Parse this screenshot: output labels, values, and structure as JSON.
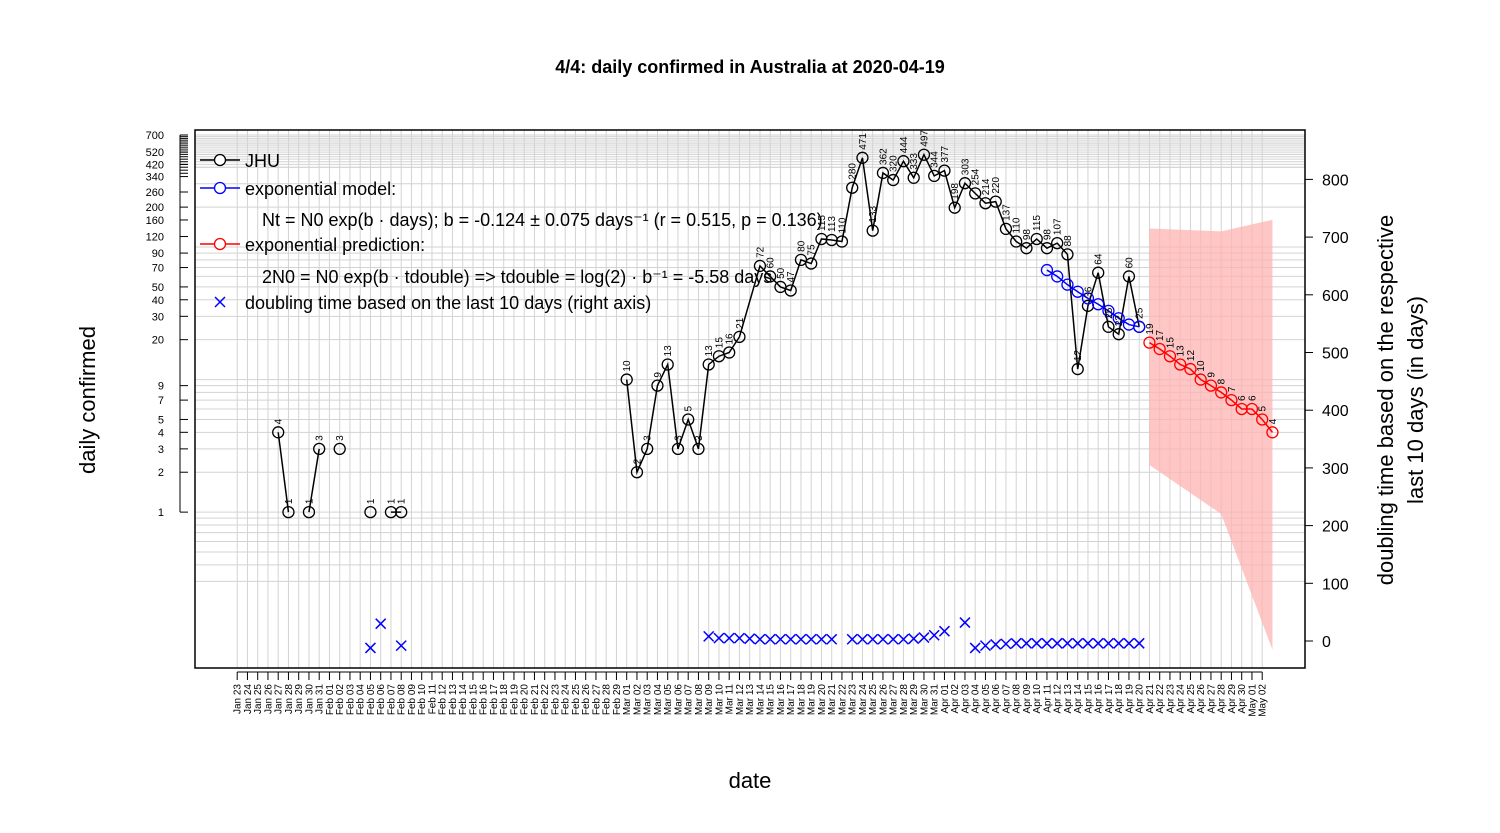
{
  "chart_data": {
    "type": "line",
    "title": "4/4: daily confirmed in Australia at 2020-04-19",
    "xlabel": "date",
    "ylabel": "daily confirmed",
    "ylabel_right": [
      "doubling time based on the respective",
      "last 10 days (in days)"
    ],
    "y_scale": "log",
    "ylim": [
      0.3,
      700
    ],
    "y_ticks": [
      1,
      2,
      3,
      4,
      5,
      7,
      9,
      20,
      30,
      40,
      50,
      70,
      90,
      120,
      160,
      200,
      260,
      340,
      420,
      520,
      700
    ],
    "y2lim": [
      -50,
      880
    ],
    "y2_ticks": [
      0,
      100,
      200,
      300,
      400,
      500,
      600,
      700,
      800
    ],
    "grid": true,
    "x_dates": [
      "Jan 23",
      "Jan 24",
      "Jan 25",
      "Jan 26",
      "Jan 27",
      "Jan 28",
      "Jan 29",
      "Jan 30",
      "Jan 31",
      "Feb 01",
      "Feb 02",
      "Feb 03",
      "Feb 04",
      "Feb 05",
      "Feb 06",
      "Feb 07",
      "Feb 08",
      "Feb 09",
      "Feb 10",
      "Feb 11",
      "Feb 12",
      "Feb 13",
      "Feb 14",
      "Feb 15",
      "Feb 16",
      "Feb 17",
      "Feb 18",
      "Feb 19",
      "Feb 20",
      "Feb 21",
      "Feb 22",
      "Feb 23",
      "Feb 24",
      "Feb 25",
      "Feb 26",
      "Feb 27",
      "Feb 28",
      "Feb 29",
      "Mar 01",
      "Mar 02",
      "Mar 03",
      "Mar 04",
      "Mar 05",
      "Mar 06",
      "Mar 07",
      "Mar 08",
      "Mar 09",
      "Mar 10",
      "Mar 11",
      "Mar 12",
      "Mar 13",
      "Mar 14",
      "Mar 15",
      "Mar 16",
      "Mar 17",
      "Mar 18",
      "Mar 19",
      "Mar 20",
      "Mar 21",
      "Mar 22",
      "Mar 23",
      "Mar 24",
      "Mar 25",
      "Mar 26",
      "Mar 27",
      "Mar 28",
      "Mar 29",
      "Mar 30",
      "Mar 31",
      "Apr 01",
      "Apr 02",
      "Apr 03",
      "Apr 04",
      "Apr 05",
      "Apr 06",
      "Apr 07",
      "Apr 08",
      "Apr 09",
      "Apr 10",
      "Apr 11",
      "Apr 12",
      "Apr 13",
      "Apr 14",
      "Apr 15",
      "Apr 16",
      "Apr 17",
      "Apr 18",
      "Apr 19",
      "Apr 20",
      "Apr 21",
      "Apr 22",
      "Apr 23",
      "Apr 24",
      "Apr 25",
      "Apr 26",
      "Apr 27",
      "Apr 28",
      "Apr 29",
      "Apr 30",
      "May 01",
      "May 02"
    ],
    "legend": {
      "position": "top-left",
      "jhu": "JHU",
      "model": "exponential model:",
      "model_formula": "Nt = N0 exp(b · days); b = -0.124 ± 0.075 days⁻¹ (r = 0.515, p = 0.136)",
      "prediction": "exponential prediction:",
      "prediction_formula": "2N0 = N0 exp(b · tdouble) => tdouble = log(2) · b⁻¹ = -5.58 days",
      "doubling": "doubling time based on the last  10  days (right axis)"
    },
    "colors": {
      "jhu": "#000000",
      "model": "#0000ff",
      "prediction": "#ff0000",
      "band": "#ffb3b3",
      "doubling": "#0000ff"
    },
    "series": [
      {
        "name": "JHU",
        "points": [
          [
            4,
            4
          ],
          [
            5,
            1
          ],
          null,
          [
            7,
            1
          ],
          [
            8,
            3
          ],
          null,
          [
            10,
            3
          ],
          null,
          [
            13,
            1
          ],
          null,
          [
            15,
            1
          ],
          [
            16,
            1
          ],
          null,
          [
            38,
            10
          ],
          [
            39,
            2
          ],
          [
            40,
            3
          ],
          [
            41,
            9
          ],
          [
            42,
            13
          ],
          [
            43,
            3
          ],
          [
            44,
            5
          ],
          [
            45,
            3
          ],
          [
            46,
            13
          ],
          [
            47,
            15
          ],
          [
            48,
            16
          ],
          [
            49,
            21
          ],
          [
            51,
            72
          ],
          [
            52,
            60
          ],
          [
            53,
            50
          ],
          [
            54,
            47
          ],
          [
            55,
            80
          ],
          [
            56,
            75
          ],
          [
            57,
            115
          ],
          [
            58,
            113
          ],
          [
            59,
            110
          ],
          [
            60,
            280
          ],
          [
            61,
            471
          ],
          [
            62,
            133
          ],
          [
            63,
            362
          ],
          [
            64,
            320
          ],
          [
            65,
            444
          ],
          [
            66,
            333
          ],
          [
            67,
            497
          ],
          [
            68,
            344
          ],
          [
            69,
            377
          ],
          [
            70,
            198
          ],
          [
            71,
            303
          ],
          [
            72,
            254
          ],
          [
            73,
            214
          ],
          [
            74,
            220
          ],
          [
            75,
            137
          ],
          [
            76,
            110
          ],
          [
            77,
            98
          ],
          [
            78,
            115
          ],
          [
            79,
            98
          ],
          [
            80,
            107
          ],
          [
            81,
            88
          ],
          [
            82,
            12
          ],
          [
            83,
            36
          ],
          [
            84,
            64
          ],
          [
            85,
            25
          ],
          [
            86,
            22
          ],
          [
            87,
            60
          ],
          [
            88,
            25
          ]
        ]
      },
      {
        "name": "exponential model",
        "points": [
          [
            79,
            67
          ],
          [
            80,
            60
          ],
          [
            81,
            52
          ],
          [
            82,
            46
          ],
          [
            83,
            41
          ],
          [
            84,
            37
          ],
          [
            85,
            33
          ],
          [
            86,
            29
          ],
          [
            87,
            26
          ],
          [
            88,
            25
          ]
        ]
      },
      {
        "name": "exponential prediction",
        "points": [
          [
            89,
            19
          ],
          [
            90,
            17
          ],
          [
            91,
            15
          ],
          [
            92,
            13
          ],
          [
            93,
            12
          ],
          [
            94,
            10
          ],
          [
            95,
            9
          ],
          [
            96,
            8
          ],
          [
            97,
            7
          ],
          [
            98,
            6
          ],
          [
            99,
            6
          ],
          [
            100,
            5
          ],
          [
            101,
            4
          ]
        ]
      },
      {
        "name": "doubling time",
        "axis": "right",
        "points": [
          [
            13,
            -12
          ],
          [
            14,
            30
          ],
          [
            16,
            -8
          ],
          [
            46,
            8
          ],
          [
            47,
            5
          ],
          [
            48,
            5
          ],
          [
            49,
            5
          ],
          [
            50,
            4
          ],
          [
            51,
            3
          ],
          [
            52,
            3
          ],
          [
            53,
            3
          ],
          [
            54,
            3
          ],
          [
            55,
            3
          ],
          [
            56,
            3
          ],
          [
            57,
            3
          ],
          [
            58,
            3
          ],
          [
            60,
            3
          ],
          [
            61,
            3
          ],
          [
            62,
            3
          ],
          [
            63,
            3
          ],
          [
            64,
            3
          ],
          [
            65,
            3
          ],
          [
            66,
            4
          ],
          [
            67,
            6
          ],
          [
            68,
            10
          ],
          [
            69,
            17
          ],
          [
            71,
            32
          ],
          [
            72,
            -12
          ],
          [
            73,
            -8
          ],
          [
            74,
            -6
          ],
          [
            75,
            -5
          ],
          [
            76,
            -4
          ],
          [
            77,
            -4
          ],
          [
            78,
            -4
          ],
          [
            79,
            -4
          ],
          [
            80,
            -4
          ],
          [
            81,
            -4
          ],
          [
            82,
            -4
          ],
          [
            83,
            -4
          ],
          [
            84,
            -4
          ],
          [
            85,
            -4
          ],
          [
            86,
            -4
          ],
          [
            87,
            -4
          ],
          [
            88,
            -4
          ]
        ]
      },
      {
        "name": "prediction band",
        "axis": "right",
        "band": [
          [
            89,
            305,
            715
          ],
          [
            96,
            220,
            710
          ],
          [
            101,
            -15,
            730
          ]
        ]
      }
    ],
    "jhu_labels": [
      [
        4,
        4,
        "4"
      ],
      [
        5,
        1,
        "1"
      ],
      [
        7,
        1,
        "1"
      ],
      [
        8,
        3,
        "3"
      ],
      [
        10,
        3,
        "3"
      ],
      [
        13,
        1,
        "1"
      ],
      [
        15,
        1,
        "1"
      ],
      [
        16,
        1,
        "1"
      ],
      [
        38,
        10,
        "10"
      ],
      [
        39,
        2,
        "2"
      ],
      [
        40,
        3,
        "3"
      ],
      [
        41,
        9,
        "9"
      ],
      [
        42,
        13,
        "13"
      ],
      [
        43,
        3,
        "3"
      ],
      [
        44,
        5,
        "5"
      ],
      [
        45,
        3,
        "3"
      ],
      [
        46,
        13,
        "13"
      ],
      [
        47,
        15,
        "15"
      ],
      [
        48,
        16,
        "16"
      ],
      [
        49,
        21,
        "21"
      ],
      [
        51,
        72,
        "72"
      ],
      [
        52,
        60,
        "60"
      ],
      [
        53,
        50,
        "50"
      ],
      [
        54,
        47,
        "47"
      ],
      [
        55,
        80,
        "80"
      ],
      [
        56,
        75,
        "75"
      ],
      [
        57,
        115,
        "115"
      ],
      [
        58,
        113,
        "113"
      ],
      [
        59,
        110,
        "110"
      ],
      [
        60,
        280,
        "280"
      ],
      [
        61,
        471,
        "471"
      ],
      [
        62,
        133,
        "133"
      ],
      [
        63,
        362,
        "362"
      ],
      [
        64,
        320,
        "320"
      ],
      [
        65,
        444,
        "444"
      ],
      [
        66,
        333,
        "333"
      ],
      [
        67,
        497,
        "497"
      ],
      [
        68,
        344,
        "344"
      ],
      [
        69,
        377,
        "377"
      ],
      [
        70,
        198,
        "198"
      ],
      [
        71,
        303,
        "303"
      ],
      [
        72,
        254,
        "254"
      ],
      [
        73,
        214,
        "214"
      ],
      [
        74,
        220,
        "220"
      ],
      [
        75,
        137,
        "137"
      ],
      [
        76,
        110,
        "110"
      ],
      [
        77,
        98,
        "98"
      ],
      [
        78,
        115,
        "115"
      ],
      [
        79,
        98,
        "98"
      ],
      [
        80,
        107,
        "107"
      ],
      [
        81,
        88,
        "88"
      ],
      [
        82,
        12,
        "12"
      ],
      [
        83,
        36,
        "36"
      ],
      [
        84,
        64,
        "64"
      ],
      [
        85,
        25,
        "25"
      ],
      [
        86,
        22,
        "22"
      ],
      [
        87,
        60,
        "60"
      ],
      [
        88,
        25,
        "25"
      ]
    ],
    "prediction_labels": [
      [
        89,
        19,
        "19"
      ],
      [
        90,
        17,
        "17"
      ],
      [
        91,
        15,
        "15"
      ],
      [
        92,
        13,
        "13"
      ],
      [
        93,
        12,
        "12"
      ],
      [
        94,
        10,
        "10"
      ],
      [
        95,
        9,
        "9"
      ],
      [
        96,
        8,
        "8"
      ],
      [
        97,
        7,
        "7"
      ],
      [
        98,
        6,
        "6"
      ],
      [
        99,
        6,
        "6"
      ],
      [
        100,
        5,
        "5"
      ],
      [
        101,
        4,
        "4"
      ]
    ]
  }
}
